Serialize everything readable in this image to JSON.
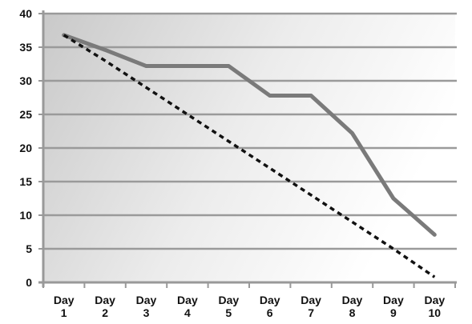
{
  "chart_data": {
    "type": "line",
    "categories": [
      [
        "Day",
        "1"
      ],
      [
        "Day",
        "2"
      ],
      [
        "Day",
        "3"
      ],
      [
        "Day",
        "4"
      ],
      [
        "Day",
        "5"
      ],
      [
        "Day",
        "6"
      ],
      [
        "Day",
        "7"
      ],
      [
        "Day",
        "8"
      ],
      [
        "Day",
        "9"
      ],
      [
        "Day",
        "10"
      ]
    ],
    "series": [
      {
        "values": [
          36.8,
          34.6,
          32.2,
          32.2,
          32.2,
          27.8,
          27.8,
          22.2,
          12.5,
          7.1
        ],
        "color": "#7a7a7a",
        "style": "solid"
      },
      {
        "values": [
          36.8,
          33.0,
          29.0,
          25.0,
          21.0,
          17.0,
          13.0,
          9.0,
          5.0,
          0.8
        ],
        "color": "#111111",
        "style": "dashed"
      }
    ],
    "yticks": [
      0,
      5,
      10,
      15,
      20,
      25,
      30,
      35,
      40
    ],
    "ylim": [
      0,
      40
    ],
    "grid": true,
    "legend": "none",
    "title": "",
    "xlabel": "",
    "ylabel": ""
  }
}
